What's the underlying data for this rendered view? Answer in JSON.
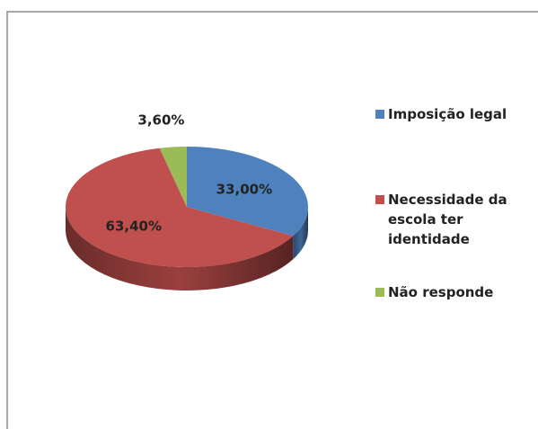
{
  "chart_data": {
    "type": "pie3d",
    "categories": [
      "Imposição legal",
      "Necessidade da escola ter identidade",
      "Não responde"
    ],
    "values": [
      33.0,
      63.4,
      3.6
    ],
    "value_labels": [
      "33,00%",
      "63,40%",
      "3,60%"
    ],
    "colors": [
      "#4f81bd",
      "#c0504d",
      "#9bbb59"
    ],
    "legend": "right"
  }
}
